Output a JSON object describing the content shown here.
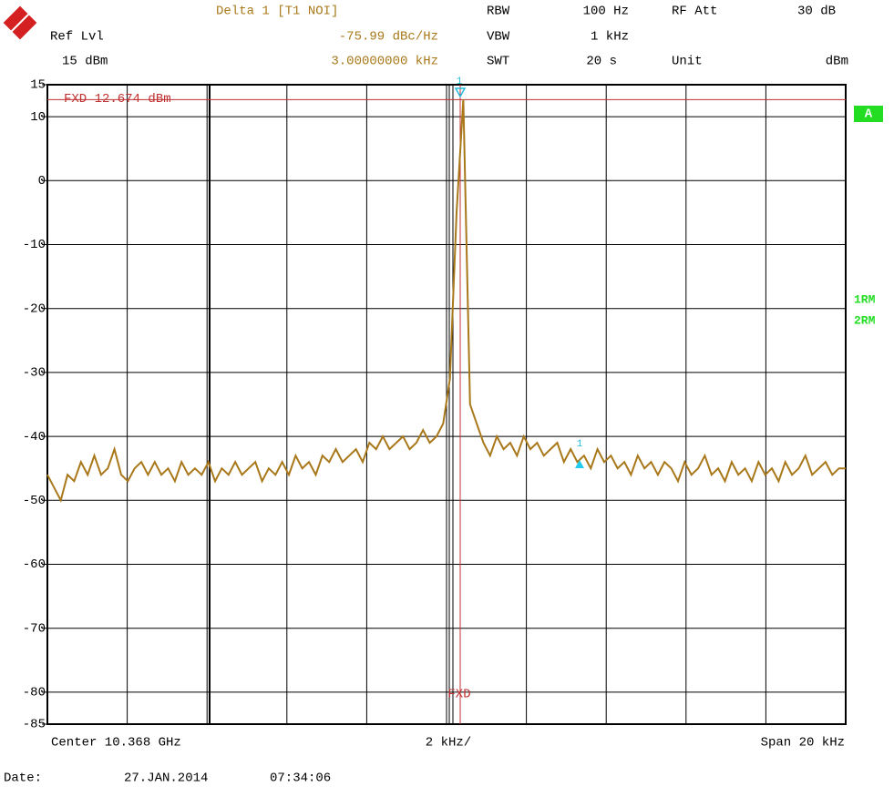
{
  "header": {
    "ref_label": "Ref Lvl",
    "ref_value": "15 dBm",
    "marker_title": "Delta 1 [T1 NOI]",
    "marker_level": "-75.99 dBc/Hz",
    "marker_freq": "3.00000000 kHz",
    "rbw_label": "RBW",
    "rbw_value": "100 Hz",
    "vbw_label": "VBW",
    "vbw_value": "1 kHz",
    "swt_label": "SWT",
    "swt_value": "20 s",
    "att_label": "RF Att",
    "att_value": "30 dB",
    "unit_label": "Unit",
    "unit_value": "dBm"
  },
  "side_labels": {
    "screen": "A",
    "traces": [
      "1RM",
      "2RM"
    ]
  },
  "footer": {
    "center": "Center 10.368 GHz",
    "div": "2 kHz/",
    "span": "Span 20 kHz",
    "date_label": "Date:",
    "date": "27.JAN.2014",
    "time": "07:34:06"
  },
  "chart_data": {
    "type": "line",
    "ylim": [
      -85,
      15
    ],
    "yticks": [
      15,
      10,
      0,
      -10,
      -20,
      -30,
      -40,
      -50,
      -60,
      -70,
      -80,
      -85
    ],
    "grid": true,
    "fxd_line": {
      "label": "FXD 12.674 dBm",
      "value": 12.674,
      "color": "#c03030"
    },
    "fxd_tag": "FXD",
    "markers": [
      {
        "label": "1"
      },
      {
        "label": "1"
      }
    ],
    "series": [
      {
        "color": "#a8781a",
        "values": [
          -46,
          -48,
          -50,
          -46,
          -47,
          -44,
          -46,
          -43,
          -46,
          -45,
          -42,
          -46,
          -47,
          -45,
          -44,
          -46,
          -44,
          -46,
          -45,
          -47,
          -44,
          -46,
          -45,
          -46,
          -44,
          -47,
          -45,
          -46,
          -44,
          -46,
          -45,
          -44,
          -47,
          -45,
          -46,
          -44,
          -46,
          -43,
          -45,
          -44,
          -46,
          -43,
          -44,
          -42,
          -44,
          -43,
          -42,
          -44,
          -41,
          -42,
          -40,
          -42,
          -41,
          -40,
          -42,
          -41,
          -39,
          -41,
          -40,
          -38,
          -31,
          -5,
          12.7,
          -35,
          -38,
          -41,
          -43,
          -40,
          -42,
          -41,
          -43,
          -40,
          -42,
          -41,
          -43,
          -42,
          -41,
          -44,
          -42,
          -44,
          -43,
          -45,
          -42,
          -44,
          -43,
          -45,
          -44,
          -46,
          -43,
          -45,
          -44,
          -46,
          -44,
          -45,
          -47,
          -44,
          -46,
          -45,
          -43,
          -46,
          -45,
          -47,
          -44,
          -46,
          -45,
          -47,
          -44,
          -46,
          -45,
          -47,
          -44,
          -46,
          -45,
          -43,
          -46,
          -45,
          -44,
          -46,
          -45,
          -45
        ]
      }
    ]
  }
}
